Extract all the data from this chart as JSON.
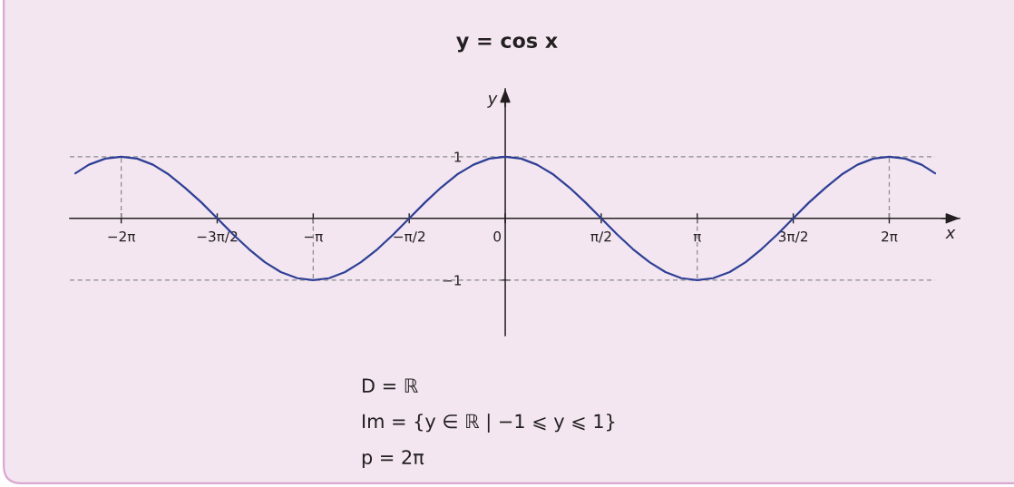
{
  "chart_data": {
    "type": "line",
    "title": "y = cos x",
    "xlabel": "x",
    "ylabel": "y",
    "x": [
      -7.03,
      -6.81,
      -6.54,
      -6.28,
      -6.02,
      -5.76,
      -5.5,
      -5.24,
      -4.97,
      -4.71,
      -4.45,
      -4.19,
      -3.93,
      -3.67,
      -3.4,
      -3.14,
      -2.88,
      -2.62,
      -2.36,
      -2.09,
      -1.83,
      -1.57,
      -1.31,
      -1.05,
      -0.79,
      -0.52,
      -0.26,
      0,
      0.26,
      0.52,
      0.79,
      1.05,
      1.31,
      1.57,
      1.83,
      2.09,
      2.36,
      2.62,
      2.88,
      3.14,
      3.4,
      3.67,
      3.93,
      4.19,
      4.45,
      4.71,
      4.97,
      5.24,
      5.5,
      5.76,
      6.02,
      6.28,
      6.54,
      6.81,
      7.03
    ],
    "series": [
      {
        "color": "#2e3f95",
        "values": [
          0.73,
          0.87,
          0.97,
          1,
          0.97,
          0.87,
          0.71,
          0.5,
          0.26,
          0,
          -0.26,
          -0.5,
          -0.71,
          -0.87,
          -0.97,
          -1,
          -0.97,
          -0.87,
          -0.71,
          -0.5,
          -0.26,
          0,
          0.26,
          0.5,
          0.71,
          0.87,
          0.97,
          1,
          0.97,
          0.87,
          0.71,
          0.5,
          0.26,
          0,
          -0.26,
          -0.5,
          -0.71,
          -0.87,
          -0.97,
          -1,
          -0.97,
          -0.87,
          -0.71,
          -0.5,
          -0.26,
          0,
          0.26,
          0.5,
          0.71,
          0.87,
          0.97,
          1,
          0.97,
          0.87,
          0.73
        ]
      }
    ],
    "xlim": [
      -7.12,
      7.43
    ],
    "ylim": [
      -1.9,
      2.1
    ],
    "xticks": [
      {
        "value": -6.28,
        "label": "−2π"
      },
      {
        "value": -4.71,
        "label": "−3π/2"
      },
      {
        "value": -3.14,
        "label": "−π"
      },
      {
        "value": -1.57,
        "label": "−π/2"
      },
      0,
      {
        "value": 1.57,
        "label": "π/2"
      },
      {
        "value": 3.14,
        "label": "π"
      },
      {
        "value": 4.71,
        "label": "3π/2"
      },
      {
        "value": 6.28,
        "label": "2π"
      }
    ],
    "yticks": [
      {
        "value": -1,
        "label": "−1"
      },
      1
    ],
    "ref_lines": [
      {
        "axis": "y",
        "value": 1,
        "color": "#8c8c8c",
        "line_style": "dashed"
      },
      {
        "axis": "y",
        "value": -1,
        "color": "#8c8c8c",
        "line_style": "dashed"
      },
      {
        "axis": "x",
        "value": -6.28,
        "color": "#8c8c8c",
        "line_style": "dashed"
      },
      {
        "axis": "x",
        "value": -3.14,
        "color": "#8c8c8c",
        "line_style": "dashed"
      },
      {
        "axis": "x",
        "value": 3.14,
        "color": "#8c8c8c",
        "line_style": "dashed"
      },
      {
        "axis": "x",
        "value": 6.28,
        "color": "#8c8c8c",
        "line_style": "dashed"
      }
    ],
    "annotations": [
      "D = ℝ",
      "Im = {y ∈ ℝ | −1 ⩽ y ⩽ 1}",
      "p = 2π"
    ]
  }
}
